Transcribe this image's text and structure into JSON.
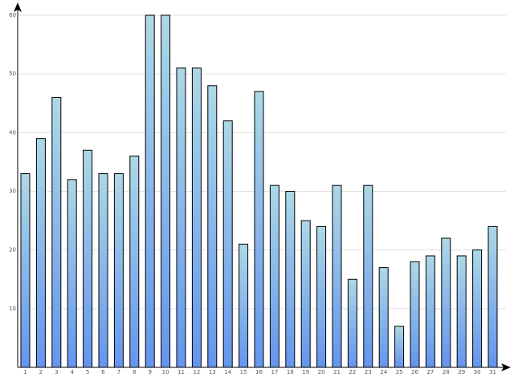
{
  "chart_data": {
    "type": "bar",
    "title": "",
    "xlabel": "",
    "ylabel": "",
    "categories": [
      "1",
      "2",
      "3",
      "4",
      "5",
      "6",
      "7",
      "8",
      "9",
      "10",
      "11",
      "12",
      "13",
      "14",
      "15",
      "16",
      "17",
      "18",
      "19",
      "20",
      "21",
      "22",
      "23",
      "24",
      "25",
      "26",
      "27",
      "28",
      "29",
      "30",
      "31"
    ],
    "values": [
      33,
      39,
      46,
      32,
      37,
      33,
      33,
      36,
      60,
      60,
      51,
      51,
      48,
      42,
      21,
      47,
      31,
      30,
      25,
      24,
      31,
      15,
      31,
      17,
      7,
      18,
      19,
      22,
      19,
      20,
      24
    ],
    "ylim": [
      0,
      60
    ],
    "yticks": [
      {
        "value": 10,
        "label": "10"
      },
      {
        "value": 20,
        "label": "20"
      },
      {
        "value": 30,
        "label": "30"
      },
      {
        "value": 40,
        "label": "40"
      },
      {
        "value": 50,
        "label": "50"
      },
      {
        "value": 60,
        "label": "60"
      }
    ],
    "grid": true,
    "colors": {
      "bar_top": "#add8e6",
      "bar_bottom": "#6495ed",
      "bar_stroke": "#000000",
      "grid": "#e0e0e0",
      "axis": "#000000",
      "tick_text": "#555555"
    }
  }
}
